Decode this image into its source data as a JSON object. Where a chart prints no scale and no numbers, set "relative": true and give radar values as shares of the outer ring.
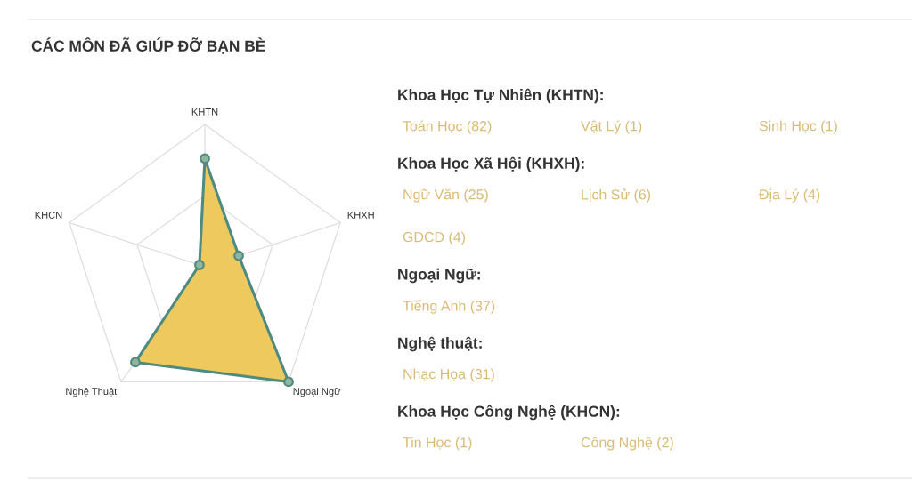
{
  "chart_data": [
    {
      "type": "radar",
      "title": "CÁC MÔN ĐÃ GIÚP ĐỠ BẠN BÈ",
      "categories": [
        "KHTN",
        "KHXH",
        "Ngoại Ngữ",
        "Nghệ Thuật",
        "KHCN"
      ],
      "relative": true,
      "grid": true,
      "marker": "circle",
      "series": [
        {
          "color": "#edc95e",
          "values": [
            0.76,
            0.25,
            1.0,
            0.83,
            0.04
          ]
        }
      ]
    },
    {
      "type": "other",
      "title": "Khoa Học Tự Nhiên (KHTN):",
      "annotations": [
        "Toán Học (82)",
        "Vật Lý (1)",
        "Sinh Học (1)"
      ]
    },
    {
      "type": "other",
      "title": "Khoa Học Xã Hội (KHXH):",
      "annotations": [
        "Ngữ Văn (25)",
        "Lịch Sử (6)",
        "Địa Lý (4)",
        "GDCD (4)"
      ]
    },
    {
      "type": "other",
      "title": "Ngoại Ngữ:",
      "annotations": [
        "Tiếng Anh (37)"
      ]
    },
    {
      "type": "other",
      "title": "Nghệ thuật:",
      "annotations": [
        "Nhạc Họa (31)"
      ]
    },
    {
      "type": "other",
      "title": "Khoa Học Công Nghệ (KHCN):",
      "annotations": [
        "Tin Học (1)",
        "Công Nghệ (2)"
      ]
    }
  ]
}
